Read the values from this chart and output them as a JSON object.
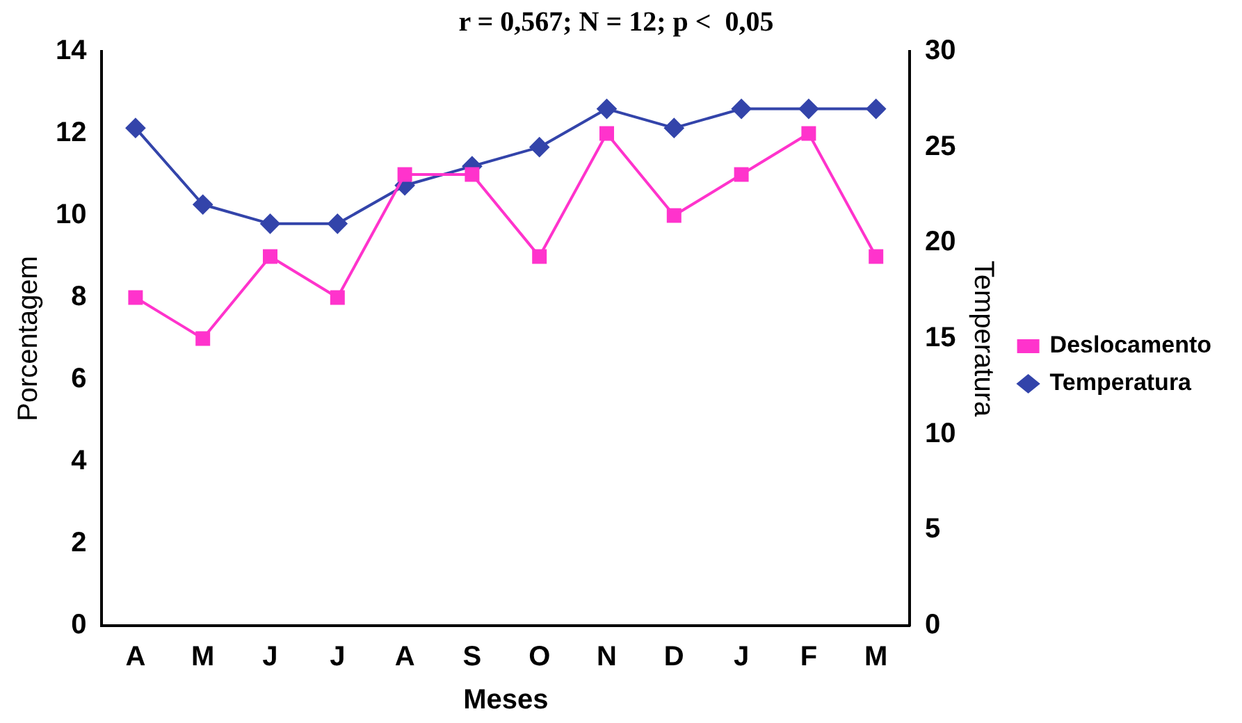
{
  "chart_data": {
    "type": "line",
    "title": "r = 0,567; N = 12; p <  0,05",
    "xlabel": "Meses",
    "ylabel": "Porcentagem",
    "y2label": "Temperatura",
    "categories": [
      "A",
      "M",
      "J",
      "J",
      "A",
      "S",
      "O",
      "N",
      "D",
      "J",
      "F",
      "M"
    ],
    "series": [
      {
        "name": "Deslocamento",
        "color": "#ff33cc",
        "marker": "square",
        "values": [
          8,
          7,
          9,
          8,
          11,
          11,
          9,
          12,
          10,
          11,
          12,
          9
        ]
      },
      {
        "name": "Temperatura",
        "color": "#3344aa",
        "marker": "diamond",
        "axis": "y2",
        "values": [
          26,
          22,
          21,
          21,
          23,
          24,
          25,
          27,
          26,
          27,
          27,
          27
        ]
      }
    ],
    "ylim": [
      0,
      14
    ],
    "yticks": [
      0,
      2,
      4,
      6,
      8,
      10,
      12,
      14
    ],
    "y2lim": [
      0,
      30
    ],
    "y2ticks": [
      0,
      5,
      10,
      15,
      20,
      25,
      30
    ],
    "grid": false,
    "legend": "right"
  }
}
